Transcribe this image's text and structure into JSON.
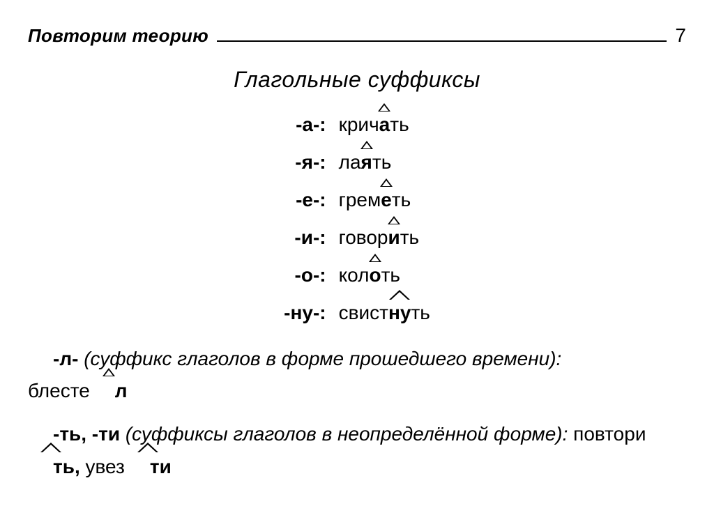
{
  "header": {
    "section_label": "Повторим теорию",
    "page_number": "7"
  },
  "title": "Глагольные суффиксы",
  "suffix_rows": [
    {
      "label": "-а-:",
      "pre": "крич",
      "hat": "а",
      "post": "ть",
      "wide": false
    },
    {
      "label": "-я-:",
      "pre": "ла",
      "hat": "я",
      "post": "ть",
      "wide": false
    },
    {
      "label": "-е-:",
      "pre": "грем",
      "hat": "е",
      "post": "ть",
      "wide": false
    },
    {
      "label": "-и-:",
      "pre": "говор",
      "hat": "и",
      "post": "ть",
      "wide": false
    },
    {
      "label": "-о-:",
      "pre": "кол",
      "hat": "о",
      "post": "ть",
      "wide": false
    },
    {
      "label": "-ну-:",
      "pre": "свист",
      "hat": "ну",
      "post": "ть",
      "wide": true
    }
  ],
  "para_l": {
    "lead_bold": "-л-",
    "lead_text": " (суффикс глаголов в форме прошедшего времени):",
    "example_pre": "блесте",
    "example_hat": "л",
    "example_wide": false
  },
  "para_t": {
    "lead_bold": "-ть, -ти",
    "lead_text": " (суффиксы глаголов в неопределённой форме): ",
    "word1_pre": "повтори",
    "word1_hat": "ть",
    "sep": ", ",
    "word2_pre": "увез",
    "word2_hat": "ти"
  },
  "colors": {
    "text": "#000000",
    "background": "#ffffff"
  },
  "typography": {
    "base_font_size_pt": 21,
    "title_font_size_pt": 24,
    "font_family": "Arial"
  }
}
